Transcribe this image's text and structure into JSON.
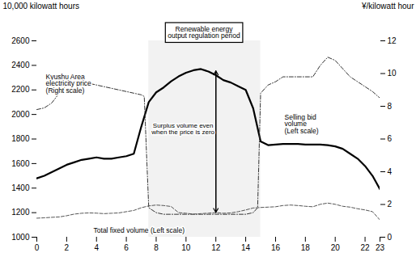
{
  "chart_data": {
    "type": "line",
    "ylabel": "10,000 kilowatt hours",
    "y2label": "¥/kilowatt hour",
    "xlim": [
      0,
      23
    ],
    "xticks": [
      0,
      2,
      4,
      6,
      8,
      10,
      12,
      14,
      16,
      18,
      20,
      22,
      23
    ],
    "ylim": [
      1000,
      2600
    ],
    "yticks": [
      1000,
      1200,
      1400,
      1600,
      1800,
      2000,
      2200,
      2400,
      2600
    ],
    "y2lim": [
      0,
      12
    ],
    "y2ticks": [
      0,
      2,
      4,
      6,
      8,
      10,
      12
    ],
    "grid": false,
    "series": [
      {
        "name": "Selling bid\nvolume\n(Left scale)",
        "color": "black",
        "line_style": "solid",
        "x": [
          0,
          0.5,
          1,
          1.5,
          2,
          2.5,
          3,
          3.5,
          4,
          4.5,
          5,
          5.5,
          6,
          6.5,
          7,
          7.5,
          8,
          8.5,
          9,
          9.5,
          10,
          10.5,
          11,
          11.5,
          12,
          12.5,
          13,
          13.5,
          14,
          14.5,
          15,
          15.5,
          16,
          16.5,
          17,
          17.5,
          18,
          18.5,
          19,
          19.5,
          20,
          20.5,
          21,
          21.5,
          22,
          22.5,
          23
        ],
        "values": [
          1480,
          1500,
          1530,
          1560,
          1590,
          1610,
          1630,
          1640,
          1650,
          1640,
          1640,
          1650,
          1660,
          1680,
          1900,
          2100,
          2180,
          2220,
          2270,
          2310,
          2340,
          2360,
          2370,
          2350,
          2320,
          2280,
          2260,
          2230,
          2200,
          2050,
          1780,
          1750,
          1755,
          1760,
          1760,
          1760,
          1755,
          1755,
          1755,
          1750,
          1740,
          1720,
          1680,
          1640,
          1580,
          1500,
          1390
        ],
        "label_at": {
          "x": 16.6,
          "y": 2000
        }
      },
      {
        "name": "Kyushu Area\nelectricity price\n(Right scale)",
        "color": "#333333",
        "line_style": "dashdot",
        "axis": "y2",
        "x": [
          0,
          0.5,
          1,
          1.5,
          2,
          2.5,
          3,
          3.5,
          4,
          4.5,
          5,
          5.5,
          6,
          6.5,
          7,
          7.2,
          7.5,
          8,
          8.5,
          9,
          9.5,
          10,
          10.5,
          11,
          11.5,
          12,
          12.5,
          13,
          13.5,
          14,
          14.5,
          14.8,
          15,
          15.5,
          16,
          16.5,
          17,
          17.5,
          18,
          18.5,
          19,
          19.5,
          20,
          20.5,
          21,
          21.5,
          22,
          22.5,
          23
        ],
        "values": [
          7.8,
          7.9,
          8.2,
          8.8,
          9.3,
          9.5,
          9.5,
          9.4,
          9.3,
          9.2,
          9.1,
          9.0,
          8.9,
          8.8,
          8.7,
          8.6,
          1.8,
          1.5,
          1.4,
          1.4,
          1.4,
          1.4,
          1.4,
          1.4,
          1.4,
          1.4,
          1.4,
          1.4,
          1.4,
          1.4,
          1.5,
          1.8,
          8.8,
          9.3,
          9.5,
          9.8,
          9.8,
          9.8,
          9.8,
          9.8,
          10.5,
          11.0,
          10.8,
          10.3,
          9.8,
          9.5,
          9.2,
          8.9,
          8.5
        ],
        "label_at": {
          "x": 0.6,
          "y": 2330
        }
      },
      {
        "name": "Total fixed volume (Left scale)",
        "color": "#555555",
        "line_style": "dashed",
        "x": [
          0,
          0.5,
          1,
          1.5,
          2,
          2.5,
          3,
          3.5,
          4,
          4.5,
          5,
          5.5,
          6,
          6.5,
          7,
          7.5,
          8,
          8.5,
          9,
          9.5,
          10,
          10.5,
          11,
          11.5,
          12,
          12.5,
          13,
          13.5,
          14,
          14.5,
          15,
          15.5,
          16,
          16.5,
          17,
          17.5,
          18,
          18.5,
          19,
          19.5,
          20,
          20.5,
          21,
          21.5,
          22,
          22.5,
          23
        ],
        "values": [
          1155,
          1158,
          1162,
          1165,
          1175,
          1188,
          1195,
          1198,
          1196,
          1192,
          1195,
          1198,
          1208,
          1218,
          1240,
          1255,
          1262,
          1258,
          1250,
          1200,
          1195,
          1188,
          1192,
          1196,
          1200,
          1195,
          1198,
          1208,
          1222,
          1238,
          1242,
          1245,
          1248,
          1258,
          1262,
          1258,
          1252,
          1248,
          1268,
          1278,
          1268,
          1252,
          1245,
          1232,
          1222,
          1208,
          1140
        ],
        "label_at": {
          "x": 3.8,
          "y": 1075
        }
      }
    ],
    "regulation_period": {
      "x1": 7.5,
      "x2": 15.0,
      "label": "Renewable energy\noutput regulation period",
      "label_at": {
        "x": 11.2,
        "y": 2620
      }
    },
    "surplus": {
      "label": "Surplus volume even\nwhen the price is zero",
      "label_at": {
        "x": 9.8,
        "y": 1880
      },
      "arrow": {
        "x": 12,
        "y1": 1202,
        "y2": 2355
      }
    }
  }
}
